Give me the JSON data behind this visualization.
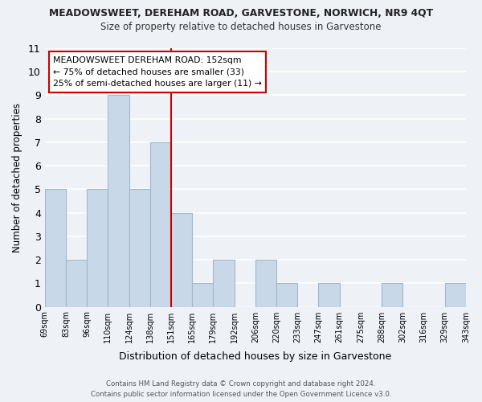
{
  "title_line1": "MEADOWSWEET, DEREHAM ROAD, GARVESTONE, NORWICH, NR9 4QT",
  "title_line2": "Size of property relative to detached houses in Garvestone",
  "xlabel": "Distribution of detached houses by size in Garvestone",
  "ylabel": "Number of detached properties",
  "bins": [
    "69sqm",
    "83sqm",
    "96sqm",
    "110sqm",
    "124sqm",
    "138sqm",
    "151sqm",
    "165sqm",
    "179sqm",
    "192sqm",
    "206sqm",
    "220sqm",
    "233sqm",
    "247sqm",
    "261sqm",
    "275sqm",
    "288sqm",
    "302sqm",
    "316sqm",
    "329sqm",
    "343sqm"
  ],
  "values": [
    5,
    2,
    5,
    9,
    5,
    7,
    4,
    1,
    2,
    0,
    2,
    1,
    0,
    1,
    0,
    0,
    1,
    0,
    0,
    1
  ],
  "bar_color": "#c8d8e8",
  "bar_edge_color": "#a0b8cc",
  "vline_color": "#cc0000",
  "annotation_text": "MEADOWSWEET DEREHAM ROAD: 152sqm\n← 75% of detached houses are smaller (33)\n25% of semi-detached houses are larger (11) →",
  "annotation_box_color": "white",
  "annotation_box_edge": "#cc0000",
  "ylim": [
    0,
    11
  ],
  "yticks": [
    0,
    1,
    2,
    3,
    4,
    5,
    6,
    7,
    8,
    9,
    10,
    11
  ],
  "background_color": "#eef2f7",
  "grid_color": "white",
  "footer_line1": "Contains HM Land Registry data © Crown copyright and database right 2024.",
  "footer_line2": "Contains public sector information licensed under the Open Government Licence v3.0."
}
